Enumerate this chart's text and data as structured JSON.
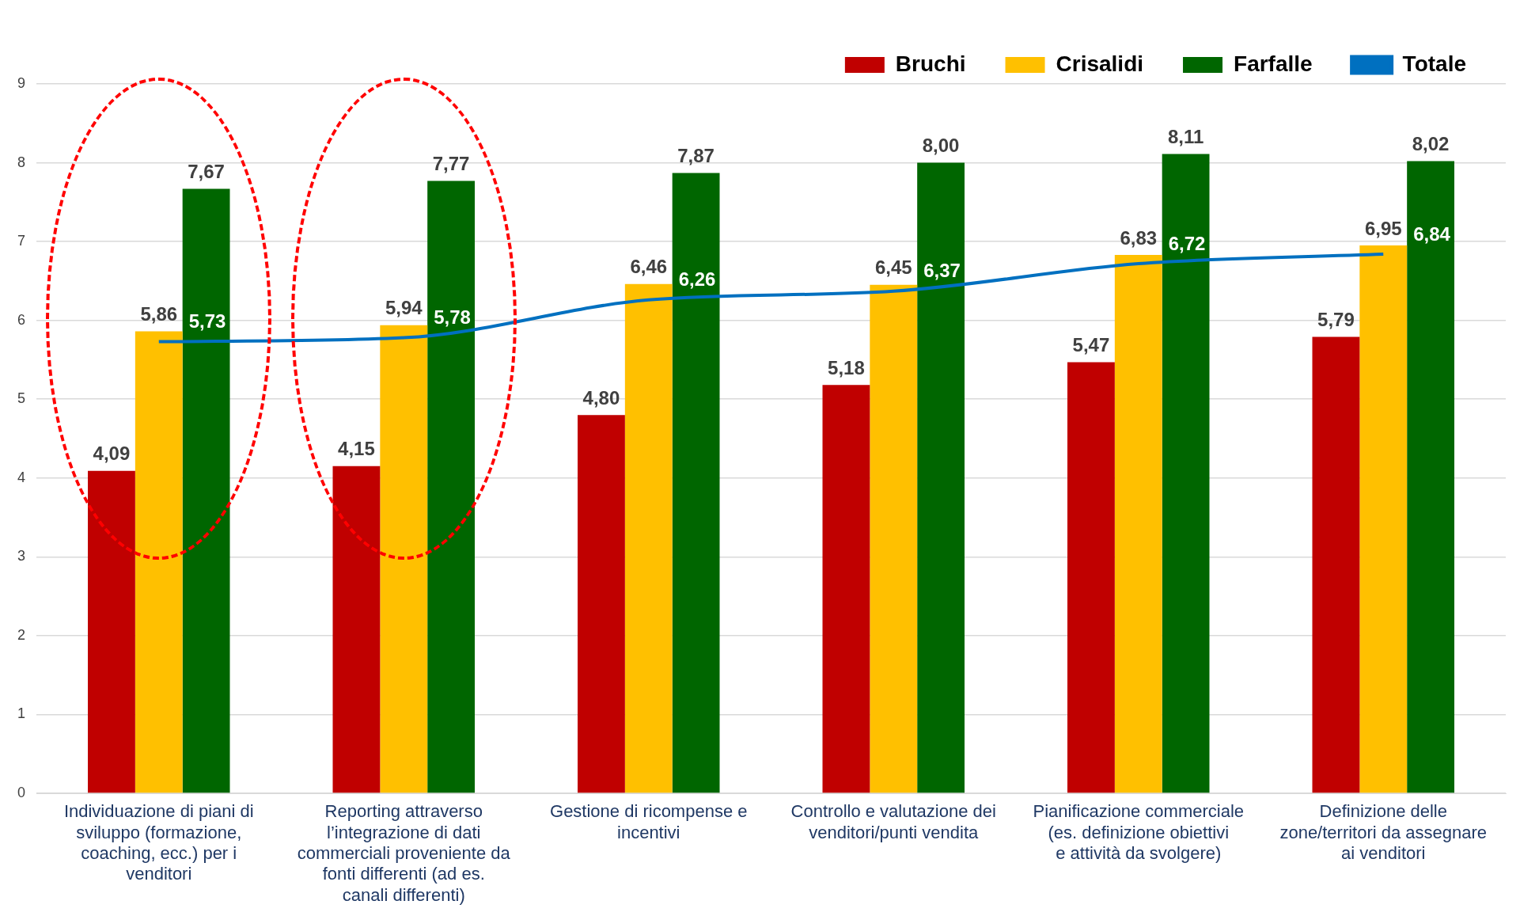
{
  "chart_data": {
    "type": "bar",
    "categories": [
      "Individuazione di piani di sviluppo (formazione, coaching, ecc.) per i venditori",
      "Reporting attraverso l’integrazione di dati commerciali proveniente da fonti differenti (ad es. canali differenti)",
      "Gestione di ricompense e incentivi",
      "Controllo e valutazione dei venditori/punti vendita",
      "Pianificazione commerciale (es. definizione obiettivi e attività da svolgere)",
      "Definizione delle zone/territori da assegnare ai venditori"
    ],
    "series": [
      {
        "name": "Bruchi",
        "color": "#c00000",
        "values": [
          4.09,
          4.15,
          4.8,
          5.18,
          5.47,
          5.79
        ],
        "value_labels": [
          "4,09",
          "4,15",
          "4,80",
          "5,18",
          "5,47",
          "5,79"
        ]
      },
      {
        "name": "Crisalidi",
        "color": "#ffc000",
        "values": [
          5.86,
          5.94,
          6.46,
          6.45,
          6.83,
          6.95
        ],
        "value_labels": [
          "5,86",
          "5,94",
          "6,46",
          "6,45",
          "6,83",
          "6,95"
        ]
      },
      {
        "name": "Farfalle",
        "color": "#006600",
        "values": [
          7.67,
          7.77,
          7.87,
          8.0,
          8.11,
          8.02
        ],
        "value_labels": [
          "7,67",
          "7,77",
          "7,87",
          "8,00",
          "8,11",
          "8,02"
        ]
      },
      {
        "name": "Totale",
        "type": "line",
        "color": "#0070c0",
        "values": [
          5.73,
          5.78,
          6.26,
          6.37,
          6.72,
          6.84
        ],
        "value_labels": [
          "5,73",
          "5,78",
          "6,26",
          "6,37",
          "6,72",
          "6,84"
        ]
      }
    ],
    "ylim": [
      0,
      9
    ],
    "yticks": [
      0,
      1,
      2,
      3,
      4,
      5,
      6,
      7,
      8,
      9
    ],
    "grid": "y",
    "legend": "top right",
    "marker": "none"
  }
}
